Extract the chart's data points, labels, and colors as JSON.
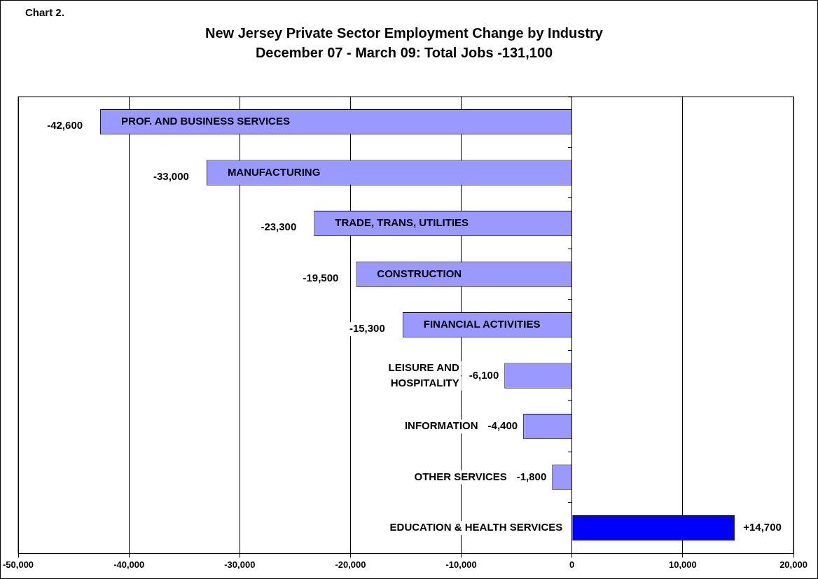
{
  "chart_data": {
    "type": "bar",
    "orientation": "horizontal",
    "title": "New Jersey Private Sector Employment Change by Industry",
    "subtitle": "December 07 - March 09: Total Jobs -131,100",
    "annotations": [
      "Chart 2."
    ],
    "categories": [
      "PROF. AND BUSINESS SERVICES",
      "MANUFACTURING",
      "TRADE, TRANS, UTILITIES",
      "CONSTRUCTION",
      "FINANCIAL ACTIVITIES",
      "LEISURE AND HOSPITALITY",
      "INFORMATION",
      "OTHER SERVICES",
      "EDUCATION & HEALTH SERVICES"
    ],
    "values": [
      -42600,
      -33000,
      -23300,
      -19500,
      -15300,
      -6100,
      -4400,
      -1800,
      14700
    ],
    "value_labels": [
      "-42,600",
      "-33,000",
      "-23,300",
      "-19,500",
      "-15,300",
      "-6,100",
      "-4,400",
      "-1,800",
      "+14,700"
    ],
    "colors": [
      "#9999ff",
      "#9999ff",
      "#9999ff",
      "#9999ff",
      "#9999ff",
      "#9999ff",
      "#9999ff",
      "#9999ff",
      "#0000ff"
    ],
    "xlim": [
      -50000,
      20000
    ],
    "xticks": [
      {
        "value": -50000,
        "label": "-50,000"
      },
      {
        "value": -40000,
        "label": "-40,000"
      },
      {
        "value": -30000,
        "label": "-30,000"
      },
      {
        "value": -20000,
        "label": "-20,000"
      },
      {
        "value": -10000,
        "label": "-10,000"
      },
      0,
      {
        "value": 10000,
        "label": "10,000"
      },
      {
        "value": 20000,
        "label": "20,000"
      }
    ],
    "grid": "x",
    "legend": false,
    "tick_labels": "x"
  }
}
